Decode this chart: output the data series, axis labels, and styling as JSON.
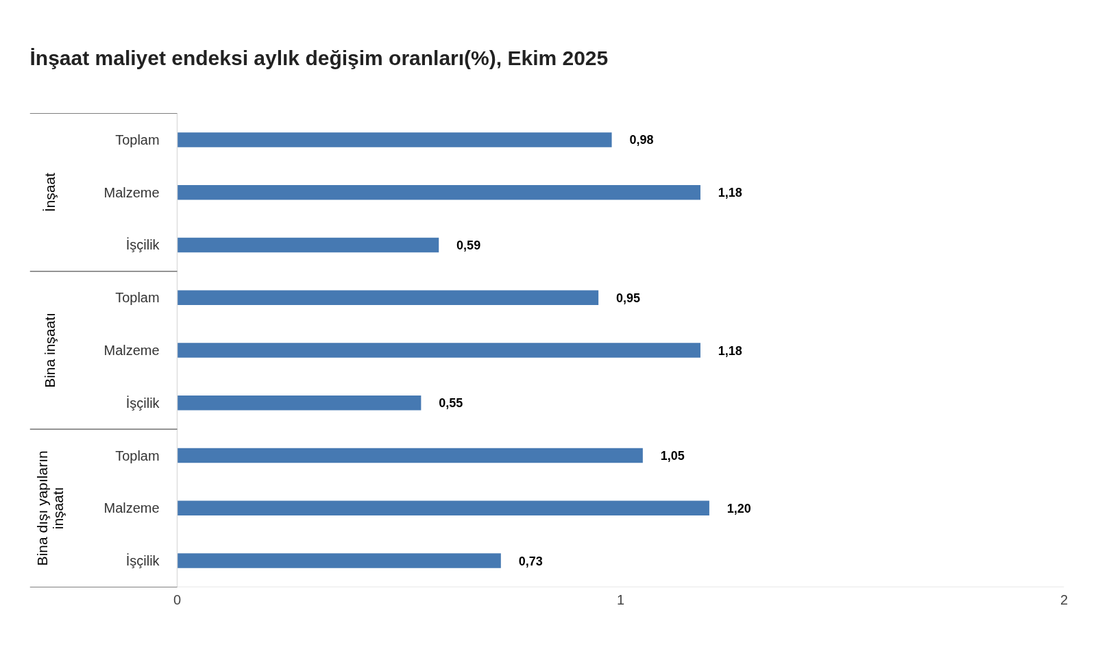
{
  "chart_data": {
    "type": "bar",
    "orientation": "horizontal",
    "title": "İnşaat maliyet endeksi aylık değişim oranları(%), Ekim 2025",
    "categories": [
      "Toplam",
      "Malzeme",
      "İşçilik",
      "Toplam",
      "Malzeme",
      "İşçilik",
      "Toplam",
      "Malzeme",
      "İşçilik"
    ],
    "values": [
      0.98,
      1.18,
      0.59,
      0.95,
      1.18,
      0.55,
      1.05,
      1.2,
      0.73
    ],
    "value_labels": [
      "0,98",
      "1,18",
      "0,59",
      "0,95",
      "1,18",
      "0,55",
      "1,05",
      "1,20",
      "0,73"
    ],
    "color": "#4679b2",
    "annotations": [
      "İnşaat",
      "Bina inşaatı",
      "Bina dışı yapıların inşaatı"
    ],
    "xlim": [
      0,
      2
    ],
    "xticks": [
      0,
      1,
      2
    ],
    "grid": false
  }
}
